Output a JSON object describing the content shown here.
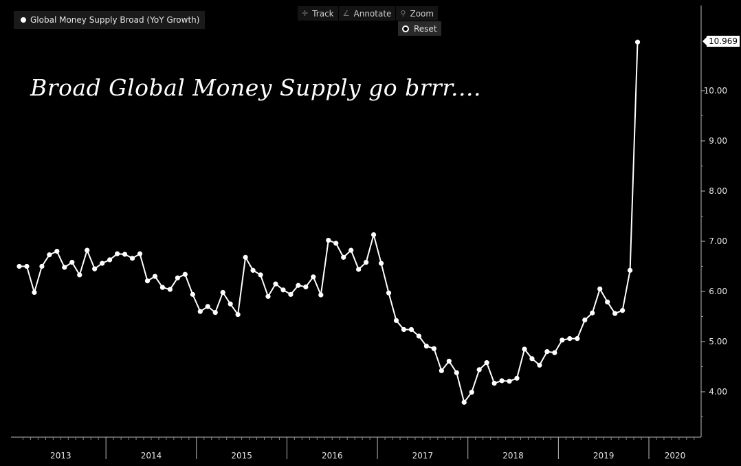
{
  "legend": {
    "label": "Global Money Supply Broad (YoY Growth)"
  },
  "toolbar": {
    "track": {
      "label": "Track",
      "icon": "crosshair-icon"
    },
    "annotate": {
      "label": "Annotate",
      "icon": "pencil-icon"
    },
    "zoom": {
      "label": "Zoom",
      "icon": "magnifier-icon"
    },
    "reset": {
      "label": "Reset",
      "icon": "radio-icon"
    }
  },
  "annotation": "Broad Global Money Supply go brrr....",
  "colors": {
    "background": "#000000",
    "line": "#ffffff"
  },
  "chart_data": {
    "type": "line",
    "title": "",
    "xlabel": "",
    "ylabel": "",
    "ylim": [
      3.2,
      11.4
    ],
    "yticks": [
      "4.00",
      "5.00",
      "6.00",
      "7.00",
      "8.00",
      "9.00",
      "10.00"
    ],
    "last_value_label": "10.969",
    "years": [
      "2013",
      "2014",
      "2015",
      "2016",
      "2017",
      "2018",
      "2019",
      "2020"
    ],
    "frequency": "monthly",
    "start": "2013-01",
    "series": [
      {
        "name": "Global Money Supply Broad (YoY Growth)",
        "values": [
          6.5,
          6.5,
          5.98,
          6.5,
          6.73,
          6.8,
          6.48,
          6.58,
          6.33,
          6.82,
          6.45,
          6.56,
          6.63,
          6.75,
          6.74,
          6.66,
          6.75,
          6.21,
          6.3,
          6.08,
          6.04,
          6.27,
          6.34,
          5.94,
          5.6,
          5.7,
          5.58,
          5.98,
          5.75,
          5.54,
          6.68,
          6.42,
          6.33,
          5.9,
          6.15,
          6.03,
          5.94,
          6.12,
          6.09,
          6.29,
          5.93,
          7.02,
          6.96,
          6.68,
          6.82,
          6.44,
          6.58,
          7.13,
          6.56,
          5.97,
          5.42,
          5.24,
          5.24,
          5.11,
          4.91,
          4.86,
          4.42,
          4.61,
          4.38,
          3.79,
          3.99,
          4.44,
          4.58,
          4.17,
          4.22,
          4.21,
          4.27,
          4.85,
          4.66,
          4.53,
          4.8,
          4.78,
          5.03,
          5.06,
          5.06,
          5.43,
          5.57,
          6.05,
          5.79,
          5.56,
          5.62,
          6.42,
          10.969
        ]
      }
    ]
  }
}
